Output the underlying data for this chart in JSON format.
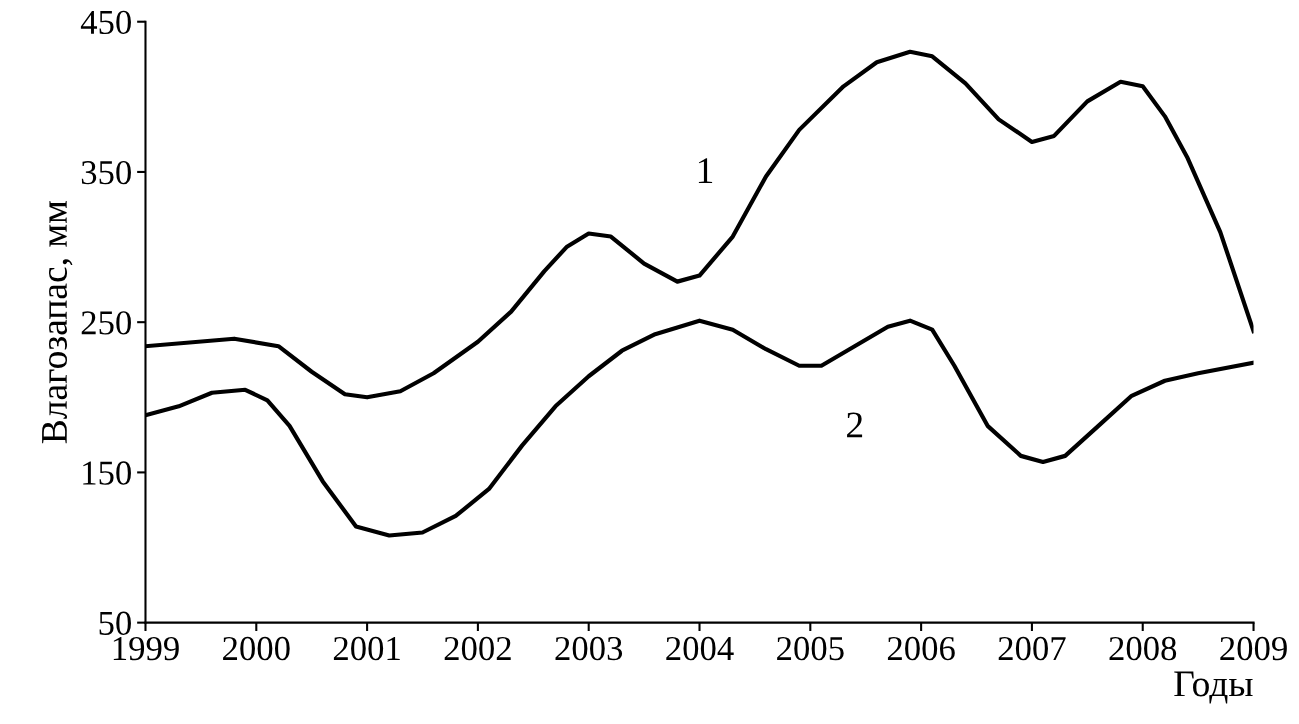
{
  "chart_data": {
    "type": "line",
    "xlabel": "Годы",
    "ylabel": "Влагозапас, мм",
    "xlim": [
      1999,
      2009
    ],
    "xticks": [
      1999,
      2000,
      2001,
      2002,
      2003,
      2004,
      2005,
      2006,
      2007,
      2008,
      2009
    ],
    "ylim": [
      50,
      450
    ],
    "yticks": [
      50,
      150,
      250,
      350,
      450
    ],
    "grid": false,
    "marker": "none",
    "line_style": "solid",
    "series": [
      {
        "name": "1",
        "color": "#000000",
        "x": [
          1999.0,
          1999.8,
          2000.2,
          2000.5,
          2000.8,
          2001.0,
          2001.3,
          2001.6,
          2002.0,
          2002.3,
          2002.6,
          2002.8,
          2003.0,
          2003.2,
          2003.5,
          2003.8,
          2004.0,
          2004.3,
          2004.6,
          2004.9,
          2005.3,
          2005.6,
          2005.9,
          2006.1,
          2006.4,
          2006.7,
          2007.0,
          2007.2,
          2007.5,
          2007.8,
          2008.0,
          2008.2,
          2008.4,
          2008.7,
          2009.0
        ],
        "values": [
          234,
          239,
          234,
          217,
          202,
          200,
          204,
          216,
          237,
          257,
          284,
          300,
          309,
          307,
          289,
          277,
          281,
          307,
          347,
          378,
          407,
          423,
          430,
          427,
          409,
          385,
          370,
          374,
          397,
          410,
          407,
          387,
          360,
          310,
          244
        ]
      },
      {
        "name": "2",
        "color": "#000000",
        "x": [
          1999.0,
          1999.3,
          1999.6,
          1999.9,
          2000.1,
          2000.3,
          2000.6,
          2000.9,
          2001.2,
          2001.5,
          2001.8,
          2002.1,
          2002.4,
          2002.7,
          2003.0,
          2003.3,
          2003.6,
          2004.0,
          2004.3,
          2004.6,
          2004.9,
          2005.1,
          2005.4,
          2005.7,
          2005.9,
          2006.1,
          2006.3,
          2006.6,
          2006.9,
          2007.1,
          2007.3,
          2007.6,
          2007.9,
          2008.2,
          2008.5,
          2009.0
        ],
        "values": [
          188,
          194,
          203,
          205,
          198,
          181,
          144,
          114,
          108,
          110,
          121,
          139,
          168,
          194,
          214,
          231,
          242,
          251,
          245,
          232,
          221,
          221,
          234,
          247,
          251,
          245,
          221,
          181,
          161,
          157,
          161,
          181,
          201,
          211,
          216,
          223
        ]
      }
    ]
  }
}
